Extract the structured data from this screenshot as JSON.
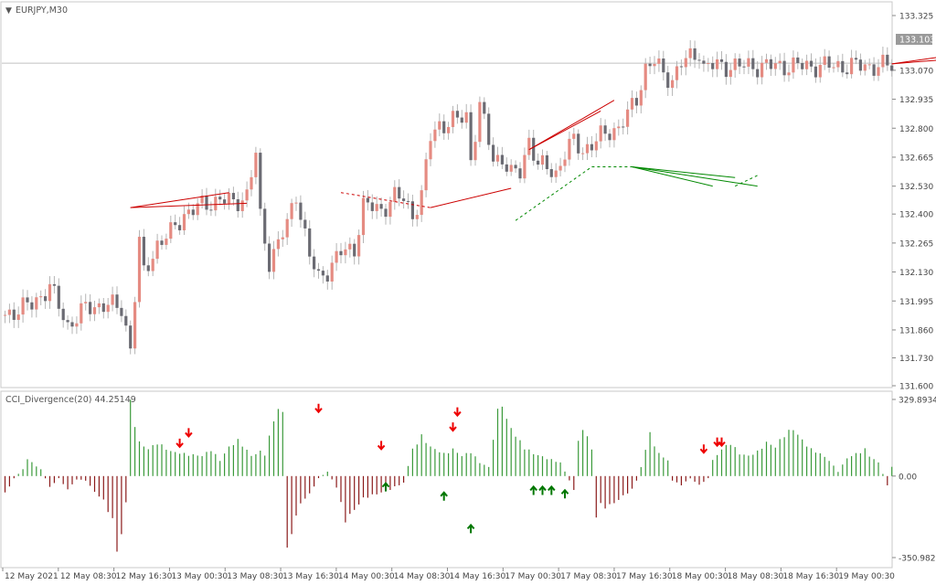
{
  "chart_data": [
    {
      "type": "candlestick",
      "title": "EURJPY,M30",
      "symbol": "EURJPY",
      "timeframe": "M30",
      "current_price": "133.103",
      "ylim": [
        131.6,
        133.325
      ],
      "y_ticks": [
        "133.325",
        "133.070",
        "132.935",
        "132.800",
        "132.665",
        "132.530",
        "132.400",
        "132.265",
        "132.130",
        "131.995",
        "131.860",
        "131.730",
        "131.600"
      ],
      "x_ticks": [
        "12 May 2021",
        "12 May 08:30",
        "12 May 16:30",
        "13 May 00:30",
        "13 May 08:30",
        "13 May 16:30",
        "14 May 00:30",
        "14 May 08:30",
        "14 May 16:30",
        "17 May 00:30",
        "17 May 08:30",
        "17 May 16:30",
        "18 May 00:30",
        "18 May 08:30",
        "18 May 16:30",
        "19 May 00:30"
      ],
      "close_path": [
        [
          0,
          131.93
        ],
        [
          6,
          131.98
        ],
        [
          10,
          132.06
        ],
        [
          14,
          131.88
        ],
        [
          18,
          131.96
        ],
        [
          22,
          131.98
        ],
        [
          26,
          131.96
        ],
        [
          28,
          131.78
        ],
        [
          30,
          132.26
        ],
        [
          31,
          132.12
        ],
        [
          34,
          132.26
        ],
        [
          37,
          132.31
        ],
        [
          40,
          132.4
        ],
        [
          44,
          132.44
        ],
        [
          48,
          132.47
        ],
        [
          51,
          132.45
        ],
        [
          54,
          132.49
        ],
        [
          56,
          132.68
        ],
        [
          57,
          132.38
        ],
        [
          59,
          132.18
        ],
        [
          63,
          132.35
        ],
        [
          65,
          132.5
        ],
        [
          68,
          132.2
        ],
        [
          70,
          132.1
        ],
        [
          72,
          132.14
        ],
        [
          75,
          132.22
        ],
        [
          78,
          132.24
        ],
        [
          80,
          132.44
        ],
        [
          82,
          132.43
        ],
        [
          84,
          132.42
        ],
        [
          87,
          132.48
        ],
        [
          89,
          132.47
        ],
        [
          91,
          132.4
        ],
        [
          93,
          132.48
        ],
        [
          95,
          132.76
        ],
        [
          97,
          132.82
        ],
        [
          99,
          132.82
        ],
        [
          101,
          132.84
        ],
        [
          103,
          132.86
        ],
        [
          104,
          132.66
        ],
        [
          106,
          132.9
        ],
        [
          107,
          132.82
        ],
        [
          109,
          132.66
        ],
        [
          111,
          132.66
        ],
        [
          113,
          132.58
        ],
        [
          115,
          132.6
        ],
        [
          117,
          132.75
        ],
        [
          119,
          132.62
        ],
        [
          121,
          132.62
        ],
        [
          123,
          132.59
        ],
        [
          125,
          132.68
        ],
        [
          127,
          132.74
        ],
        [
          129,
          132.7
        ],
        [
          131,
          132.72
        ],
        [
          133,
          132.76
        ],
        [
          135,
          132.79
        ],
        [
          137,
          132.8
        ],
        [
          139,
          132.86
        ],
        [
          141,
          132.94
        ],
        [
          143,
          133.08
        ],
        [
          145,
          133.11
        ],
        [
          147,
          133.05
        ],
        [
          149,
          133.03
        ],
        [
          151,
          133.1
        ],
        [
          153,
          133.13
        ],
        [
          155,
          133.16
        ],
        [
          156,
          133.08
        ],
        [
          157,
          133.09
        ]
      ],
      "divergence_lines": [
        {
          "color": "#cc0000",
          "style": "solid",
          "from": [
            28,
            132.43
          ],
          "to": [
            50,
            132.5
          ]
        },
        {
          "color": "#cc0000",
          "style": "solid",
          "from": [
            28,
            132.43
          ],
          "to": [
            54,
            132.45
          ]
        },
        {
          "color": "#cc0000",
          "style": "dashed",
          "from": [
            75,
            132.5
          ],
          "to": [
            95,
            132.43
          ]
        },
        {
          "color": "#cc0000",
          "style": "solid",
          "from": [
            95,
            132.43
          ],
          "to": [
            113,
            132.52
          ]
        },
        {
          "color": "#cc0000",
          "style": "solid",
          "from": [
            117,
            132.7
          ],
          "to": [
            136,
            132.93
          ]
        },
        {
          "color": "#cc0000",
          "style": "solid",
          "from": [
            117,
            132.7
          ],
          "to": [
            133,
            132.88
          ]
        },
        {
          "color": "#cc0000",
          "style": "solid",
          "from": [
            198,
            133.1
          ],
          "to": [
            215,
            133.15
          ]
        },
        {
          "color": "#cc0000",
          "style": "solid",
          "from": [
            198,
            133.1
          ],
          "to": [
            210,
            133.12
          ]
        },
        {
          "color": "#cc0000",
          "style": "solid",
          "from": [
            208,
            133.12
          ],
          "to": [
            217,
            133.16
          ]
        },
        {
          "color": "#008800",
          "style": "dashed",
          "from": [
            114,
            132.37
          ],
          "to": [
            131,
            132.62
          ]
        },
        {
          "color": "#008800",
          "style": "dashed",
          "from": [
            131,
            132.62
          ],
          "to": [
            140,
            132.62
          ]
        },
        {
          "color": "#008800",
          "style": "solid",
          "from": [
            140,
            132.62
          ],
          "to": [
            158,
            132.53
          ]
        },
        {
          "color": "#008800",
          "style": "solid",
          "from": [
            140,
            132.62
          ],
          "to": [
            163,
            132.57
          ]
        },
        {
          "color": "#008800",
          "style": "solid",
          "from": [
            140,
            132.62
          ],
          "to": [
            168,
            132.53
          ]
        },
        {
          "color": "#008800",
          "style": "dashed",
          "from": [
            163,
            132.53
          ],
          "to": [
            168,
            132.58
          ]
        }
      ]
    },
    {
      "type": "bar",
      "title": "CCI_Divergence(20) 44.25149",
      "indicator": "CCI_Divergence",
      "period": 20,
      "current_value": "44.25149",
      "ylim": [
        -350.98,
        329.89
      ],
      "y_ticks": [
        "329.89341",
        "0.00",
        "-350.98251"
      ],
      "colors": {
        "positive": "#3a9a3a",
        "negative": "#8b1a1a"
      },
      "value_path": [
        [
          0,
          -80
        ],
        [
          2,
          -10
        ],
        [
          4,
          30
        ],
        [
          5,
          80
        ],
        [
          6,
          60
        ],
        [
          8,
          30
        ],
        [
          10,
          -50
        ],
        [
          12,
          -10
        ],
        [
          14,
          -60
        ],
        [
          16,
          -15
        ],
        [
          18,
          -20
        ],
        [
          20,
          -70
        ],
        [
          22,
          -110
        ],
        [
          24,
          -200
        ],
        [
          25,
          -330
        ],
        [
          26,
          -260
        ],
        [
          27,
          -120
        ],
        [
          28,
          330
        ],
        [
          30,
          150
        ],
        [
          32,
          120
        ],
        [
          34,
          150
        ],
        [
          37,
          110
        ],
        [
          40,
          100
        ],
        [
          44,
          90
        ],
        [
          46,
          120
        ],
        [
          48,
          70
        ],
        [
          50,
          130
        ],
        [
          52,
          160
        ],
        [
          53,
          140
        ],
        [
          55,
          90
        ],
        [
          57,
          110
        ],
        [
          58,
          100
        ],
        [
          60,
          250
        ],
        [
          61,
          300
        ],
        [
          62,
          280
        ],
        [
          63,
          -340
        ],
        [
          64,
          -250
        ],
        [
          66,
          -120
        ],
        [
          68,
          -80
        ],
        [
          70,
          -10
        ],
        [
          72,
          20
        ],
        [
          74,
          -50
        ],
        [
          76,
          -200
        ],
        [
          78,
          -150
        ],
        [
          80,
          -100
        ],
        [
          83,
          -80
        ],
        [
          86,
          -60
        ],
        [
          89,
          -30
        ],
        [
          91,
          120
        ],
        [
          93,
          180
        ],
        [
          95,
          130
        ],
        [
          98,
          100
        ],
        [
          100,
          120
        ],
        [
          102,
          90
        ],
        [
          104,
          110
        ],
        [
          106,
          60
        ],
        [
          108,
          40
        ],
        [
          109,
          170
        ],
        [
          110,
          290
        ],
        [
          111,
          330
        ],
        [
          112,
          250
        ],
        [
          114,
          180
        ],
        [
          116,
          130
        ],
        [
          118,
          100
        ],
        [
          121,
          80
        ],
        [
          124,
          60
        ],
        [
          127,
          -60
        ],
        [
          128,
          170
        ],
        [
          129,
          200
        ],
        [
          130,
          180
        ],
        [
          131,
          120
        ],
        [
          132,
          -180
        ],
        [
          133,
          -130
        ],
        [
          134,
          -140
        ],
        [
          136,
          -120
        ],
        [
          138,
          -90
        ],
        [
          140,
          -60
        ],
        [
          141,
          -20
        ],
        [
          142,
          40
        ],
        [
          143,
          120
        ],
        [
          144,
          190
        ],
        [
          146,
          100
        ],
        [
          148,
          70
        ],
        [
          149,
          -20
        ],
        [
          151,
          -40
        ],
        [
          153,
          -10
        ],
        [
          155,
          -40
        ],
        [
          157,
          -10
        ],
        [
          158,
          70
        ],
        [
          160,
          120
        ],
        [
          162,
          150
        ],
        [
          164,
          100
        ],
        [
          166,
          90
        ],
        [
          168,
          110
        ],
        [
          170,
          150
        ],
        [
          172,
          130
        ],
        [
          174,
          190
        ],
        [
          176,
          210
        ],
        [
          178,
          160
        ],
        [
          180,
          120
        ],
        [
          182,
          100
        ],
        [
          184,
          70
        ],
        [
          186,
          20
        ],
        [
          188,
          80
        ],
        [
          190,
          100
        ],
        [
          192,
          120
        ],
        [
          193,
          90
        ],
        [
          195,
          60
        ],
        [
          197,
          -40
        ],
        [
          198,
          44
        ]
      ],
      "signals": [
        {
          "dir": "down",
          "bar": 39,
          "value": 110
        },
        {
          "dir": "down",
          "bar": 41,
          "value": 155
        },
        {
          "dir": "down",
          "bar": 70,
          "value": 260
        },
        {
          "dir": "down",
          "bar": 84,
          "value": 100
        },
        {
          "dir": "up",
          "bar": 85,
          "value": -15
        },
        {
          "dir": "up",
          "bar": 98,
          "value": -55
        },
        {
          "dir": "down",
          "bar": 100,
          "value": 180
        },
        {
          "dir": "down",
          "bar": 101,
          "value": 245
        },
        {
          "dir": "up",
          "bar": 104,
          "value": -195
        },
        {
          "dir": "up",
          "bar": 118,
          "value": -30
        },
        {
          "dir": "up",
          "bar": 120,
          "value": -30
        },
        {
          "dir": "up",
          "bar": 122,
          "value": -30
        },
        {
          "dir": "up",
          "bar": 125,
          "value": -45
        },
        {
          "dir": "down",
          "bar": 156,
          "value": 85
        },
        {
          "dir": "down",
          "bar": 159,
          "value": 115
        },
        {
          "dir": "down",
          "bar": 160,
          "value": 115
        }
      ]
    }
  ]
}
